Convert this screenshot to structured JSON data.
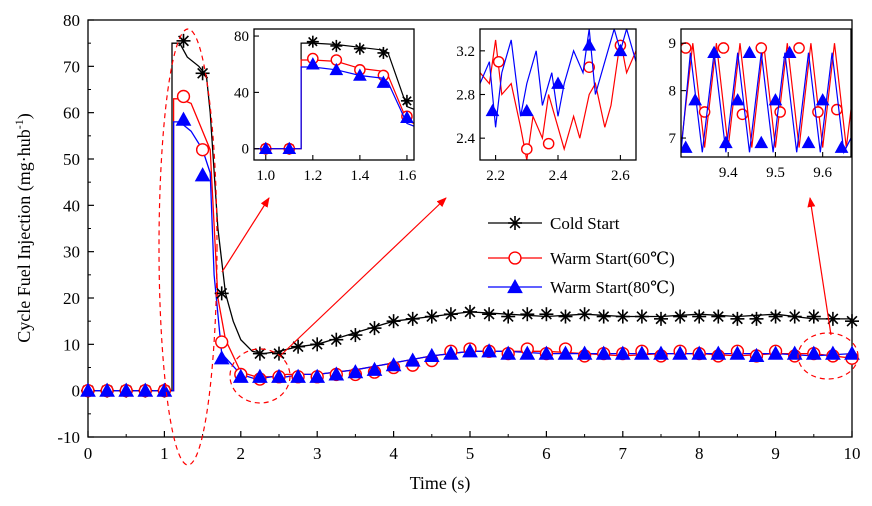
{
  "chart_data": {
    "type": "line",
    "title": "",
    "xlabel": "Time (s)",
    "ylabel_main": "Cycle Fuel Injection (mg·hub",
    "ylabel_sup": "-1",
    "ylabel_close": ")",
    "xlim": [
      0,
      10
    ],
    "ylim": [
      -10,
      80
    ],
    "xticks": [
      0,
      1,
      2,
      3,
      4,
      5,
      6,
      7,
      8,
      9,
      10
    ],
    "yticks": [
      -10,
      0,
      10,
      20,
      30,
      40,
      50,
      60,
      70,
      80
    ],
    "legend_position": "center-right",
    "series": [
      {
        "name": "Cold Start",
        "color": "#000000",
        "marker": "asterisk",
        "x": [
          0,
          0.5,
          1.1,
          1.1,
          1.2,
          1.3,
          1.45,
          1.55,
          1.6,
          1.7,
          1.8,
          1.9,
          2.0,
          2.15,
          2.3,
          2.5,
          2.75,
          3.0,
          3.3,
          3.6,
          4.0,
          4.5,
          5.0,
          5.5,
          6.0,
          6.5,
          7.0,
          7.5,
          8.0,
          8.5,
          9.0,
          9.5,
          10.0
        ],
        "y": [
          0,
          0,
          0,
          75,
          75,
          72,
          70,
          68,
          60,
          35,
          21,
          15,
          11,
          8.5,
          8,
          8.5,
          9.5,
          10,
          11.5,
          13,
          15,
          16,
          17,
          16.5,
          16,
          16.5,
          16,
          16,
          16.5,
          16,
          16.5,
          15.5,
          15.5
        ],
        "marker_x": [
          0,
          0.25,
          0.5,
          0.75,
          1.0,
          1.25,
          1.5,
          1.75,
          2.25,
          2.5,
          2.75,
          3.0,
          3.25,
          3.5,
          3.75,
          4.0,
          4.25,
          4.5,
          4.75,
          5.0,
          5.25,
          5.5,
          5.75,
          6.0,
          6.25,
          6.5,
          6.75,
          7.0,
          7.25,
          7.5,
          7.75,
          8.0,
          8.25,
          8.5,
          8.75,
          9.0,
          9.25,
          9.5,
          9.75,
          10.0
        ],
        "marker_y": [
          0,
          0,
          0,
          0,
          0,
          75.5,
          68.5,
          21,
          8,
          8,
          9.5,
          10,
          11,
          12,
          13.5,
          15,
          15.5,
          16,
          16.5,
          17,
          16.5,
          16,
          16.5,
          16.5,
          16,
          16.5,
          16,
          16,
          16,
          15.5,
          16,
          16,
          16,
          15.5,
          15.5,
          16,
          16,
          16,
          15.5,
          15
        ]
      },
      {
        "name": "Warm Start(60℃)",
        "color": "#ff0000",
        "marker": "circle",
        "x": [
          0,
          1.12,
          1.12,
          1.2,
          1.35,
          1.5,
          1.6,
          1.7,
          1.8,
          2.0,
          2.2,
          2.4,
          2.6,
          2.8,
          3.0,
          3.5,
          4.0,
          4.5,
          5.0,
          5.5,
          6.0,
          6.5,
          7.0,
          7.5,
          8.0,
          8.5,
          9.0,
          9.5,
          10.0
        ],
        "y": [
          0,
          0,
          63,
          63,
          62,
          56,
          52,
          20,
          11,
          4,
          3,
          3,
          3.5,
          3.5,
          3.5,
          4.5,
          6,
          7.5,
          8.5,
          8.5,
          8.5,
          8,
          7.5,
          8,
          8,
          7.5,
          8,
          8,
          7
        ],
        "marker_x": [
          0,
          0.25,
          0.5,
          0.75,
          1.0,
          1.25,
          1.5,
          1.75,
          2.0,
          2.25,
          2.5,
          2.75,
          3.0,
          3.25,
          3.5,
          3.75,
          4.0,
          4.25,
          4.5,
          4.75,
          5.0,
          5.25,
          5.5,
          5.75,
          6.0,
          6.25,
          6.5,
          6.75,
          7.0,
          7.25,
          7.5,
          7.75,
          8.0,
          8.25,
          8.5,
          8.75,
          9.0,
          9.25,
          9.5,
          9.75,
          10.0
        ],
        "marker_y": [
          0,
          0,
          0,
          0,
          0,
          63.5,
          52,
          10.5,
          3.5,
          2.5,
          3,
          3,
          3,
          3.5,
          3.5,
          4,
          5,
          5.5,
          6.5,
          8.5,
          9,
          8.5,
          8,
          9,
          8,
          9,
          7.5,
          8,
          8,
          8.5,
          7.5,
          8.5,
          8,
          7.5,
          8.5,
          7.5,
          8.5,
          7.5,
          8,
          7.5,
          7
        ]
      },
      {
        "name": "Warm Start(80℃)",
        "color": "#0000ff",
        "marker": "triangle",
        "x": [
          0,
          1.12,
          1.12,
          1.2,
          1.35,
          1.5,
          1.6,
          1.65,
          1.75,
          2.0,
          2.2,
          2.4,
          2.6,
          2.8,
          3.0,
          3.5,
          4.0,
          4.5,
          5.0,
          5.5,
          6.0,
          6.5,
          7.0,
          7.5,
          8.0,
          8.5,
          9.0,
          9.5,
          10.0
        ],
        "y": [
          0,
          0,
          58,
          58,
          56,
          52,
          47,
          25,
          8,
          3.5,
          2.5,
          3,
          3,
          3.5,
          3.5,
          4.5,
          6,
          7.5,
          8.5,
          8.5,
          8,
          8,
          8,
          8,
          8,
          8,
          8,
          7.5,
          8
        ],
        "marker_x": [
          0,
          0.25,
          0.5,
          0.75,
          1.0,
          1.25,
          1.5,
          1.75,
          2.0,
          2.25,
          2.5,
          2.75,
          3.0,
          3.25,
          3.5,
          3.75,
          4.0,
          4.25,
          4.5,
          4.75,
          5.0,
          5.25,
          5.5,
          5.75,
          6.0,
          6.25,
          6.5,
          6.75,
          7.0,
          7.25,
          7.5,
          7.75,
          8.0,
          8.25,
          8.5,
          8.75,
          9.0,
          9.25,
          9.5,
          9.75,
          10.0
        ],
        "marker_y": [
          0,
          0,
          0,
          0,
          0,
          58.5,
          46.5,
          7,
          3,
          3,
          3,
          3,
          3,
          3.5,
          4,
          4.5,
          5.5,
          6.5,
          7.5,
          8,
          8.5,
          8.5,
          8,
          8,
          8,
          8,
          8,
          8,
          8,
          8,
          8,
          8,
          8,
          8,
          8,
          7.5,
          8,
          8,
          8,
          8,
          8
        ]
      }
    ],
    "insets": [
      {
        "xlim": [
          0.95,
          1.63
        ],
        "ylim": [
          -8,
          85
        ],
        "xticks": [
          1.0,
          1.2,
          1.4,
          1.6
        ],
        "xtick_labels": [
          "1.0",
          "1.2",
          "1.4",
          "1.6"
        ],
        "yticks": [
          0,
          40,
          80
        ],
        "ytick_labels": [
          "0",
          "40",
          "80"
        ],
        "series": [
          {
            "x": [
              0.95,
              1.15,
              1.15,
              1.2,
              1.3,
              1.4,
              1.5,
              1.52,
              1.6,
              1.63
            ],
            "y": [
              0,
              0,
              75,
              75,
              74,
              72,
              70,
              68,
              30,
              28
            ],
            "mx": [
              1.0,
              1.1,
              1.2,
              1.3,
              1.4,
              1.5,
              1.6
            ],
            "my": [
              0,
              0,
              76,
              73,
              71,
              68,
              34
            ]
          },
          {
            "x": [
              0.95,
              1.15,
              1.15,
              1.2,
              1.3,
              1.4,
              1.5,
              1.52,
              1.6,
              1.63
            ],
            "y": [
              0,
              0,
              63,
              63,
              62,
              57,
              55,
              52,
              20,
              18
            ],
            "mx": [
              1.0,
              1.1,
              1.2,
              1.3,
              1.4,
              1.5,
              1.6
            ],
            "my": [
              0,
              0,
              64,
              63,
              56,
              52,
              23
            ]
          },
          {
            "x": [
              0.95,
              1.15,
              1.15,
              1.2,
              1.3,
              1.4,
              1.5,
              1.52,
              1.6,
              1.63
            ],
            "y": [
              0,
              0,
              58,
              58,
              56,
              52,
              50,
              47,
              18,
              16
            ],
            "mx": [
              1.0,
              1.1,
              1.2,
              1.3,
              1.4,
              1.5,
              1.6
            ],
            "my": [
              0,
              0,
              60,
              56,
              52,
              47,
              22
            ]
          }
        ]
      },
      {
        "xlim": [
          2.15,
          2.65
        ],
        "ylim": [
          2.2,
          3.4
        ],
        "xticks": [
          2.2,
          2.4,
          2.6
        ],
        "xtick_labels": [
          "2.2",
          "2.4",
          "2.6"
        ],
        "yticks": [
          2.4,
          2.8,
          3.2
        ],
        "ytick_labels": [
          "2.4",
          "2.8",
          "3.2"
        ],
        "series": [
          {
            "x": [
              2.15,
              2.18,
              2.2,
              2.22,
              2.25,
              2.28,
              2.3,
              2.32,
              2.35,
              2.37,
              2.4,
              2.42,
              2.45,
              2.47,
              2.5,
              2.52,
              2.55,
              2.57,
              2.6,
              2.62,
              2.65
            ],
            "y": [
              3.0,
              2.9,
              3.3,
              2.8,
              2.9,
              2.5,
              2.2,
              2.6,
              2.4,
              2.8,
              2.5,
              2.3,
              2.6,
              2.4,
              2.8,
              2.9,
              2.5,
              2.7,
              3.3,
              3.0,
              3.2
            ],
            "mx": [
              2.21,
              2.3,
              2.37,
              2.5,
              2.6
            ],
            "my": [
              3.1,
              2.3,
              2.35,
              3.05,
              3.25
            ]
          },
          {
            "x": [
              2.15,
              2.18,
              2.2,
              2.22,
              2.25,
              2.28,
              2.3,
              2.33,
              2.35,
              2.38,
              2.4,
              2.42,
              2.45,
              2.48,
              2.5,
              2.52,
              2.55,
              2.58,
              2.6,
              2.62,
              2.65
            ],
            "y": [
              2.9,
              3.1,
              2.5,
              3.0,
              3.3,
              2.6,
              2.9,
              3.2,
              2.7,
              3.0,
              2.6,
              2.9,
              3.2,
              3.0,
              3.4,
              2.8,
              3.1,
              3.4,
              3.2,
              3.4,
              3.1
            ],
            "mx": [
              2.19,
              2.3,
              2.4,
              2.5,
              2.6
            ],
            "my": [
              2.65,
              2.65,
              2.9,
              3.25,
              3.2
            ]
          }
        ]
      },
      {
        "xlim": [
          9.3,
          9.66
        ],
        "ylim": [
          6.6,
          9.3
        ],
        "xticks": [
          9.4,
          9.5,
          9.6
        ],
        "xtick_labels": [
          "9.4",
          "9.5",
          "9.6"
        ],
        "yticks": [
          7,
          8,
          9
        ],
        "ytick_labels": [
          "7",
          "8",
          "9"
        ],
        "series": [
          {
            "x": [
              9.3,
              9.325,
              9.35,
              9.375,
              9.4,
              9.425,
              9.45,
              9.475,
              9.5,
              9.525,
              9.55,
              9.575,
              9.6,
              9.625,
              9.65,
              9.66
            ],
            "y": [
              6.8,
              9.0,
              6.8,
              9.0,
              6.8,
              9.0,
              6.8,
              9.0,
              6.8,
              9.0,
              6.8,
              9.0,
              6.8,
              9.0,
              6.8,
              7.6
            ],
            "mx": [
              9.31,
              9.35,
              9.39,
              9.43,
              9.47,
              9.51,
              9.55,
              9.59,
              9.63
            ],
            "my": [
              8.9,
              7.55,
              8.9,
              7.5,
              8.9,
              7.55,
              8.9,
              7.55,
              7.6
            ]
          },
          {
            "x": [
              9.3,
              9.32,
              9.345,
              9.37,
              9.395,
              9.42,
              9.445,
              9.47,
              9.495,
              9.52,
              9.545,
              9.57,
              9.595,
              9.62,
              9.645,
              9.66
            ],
            "y": [
              6.7,
              8.8,
              6.7,
              8.8,
              6.7,
              8.8,
              6.7,
              8.8,
              6.7,
              8.8,
              6.7,
              8.8,
              6.7,
              8.8,
              6.7,
              7.0
            ],
            "mx": [
              9.31,
              9.33,
              9.37,
              9.395,
              9.42,
              9.445,
              9.47,
              9.5,
              9.53,
              9.57,
              9.6,
              9.64
            ],
            "my": [
              6.8,
              7.8,
              8.8,
              6.9,
              7.8,
              8.8,
              6.9,
              7.8,
              8.8,
              6.9,
              7.8,
              6.8
            ]
          }
        ]
      }
    ]
  },
  "legend": {
    "items": [
      "Cold Start",
      "Warm Start(60℃)",
      "Warm Start(80℃)"
    ]
  }
}
